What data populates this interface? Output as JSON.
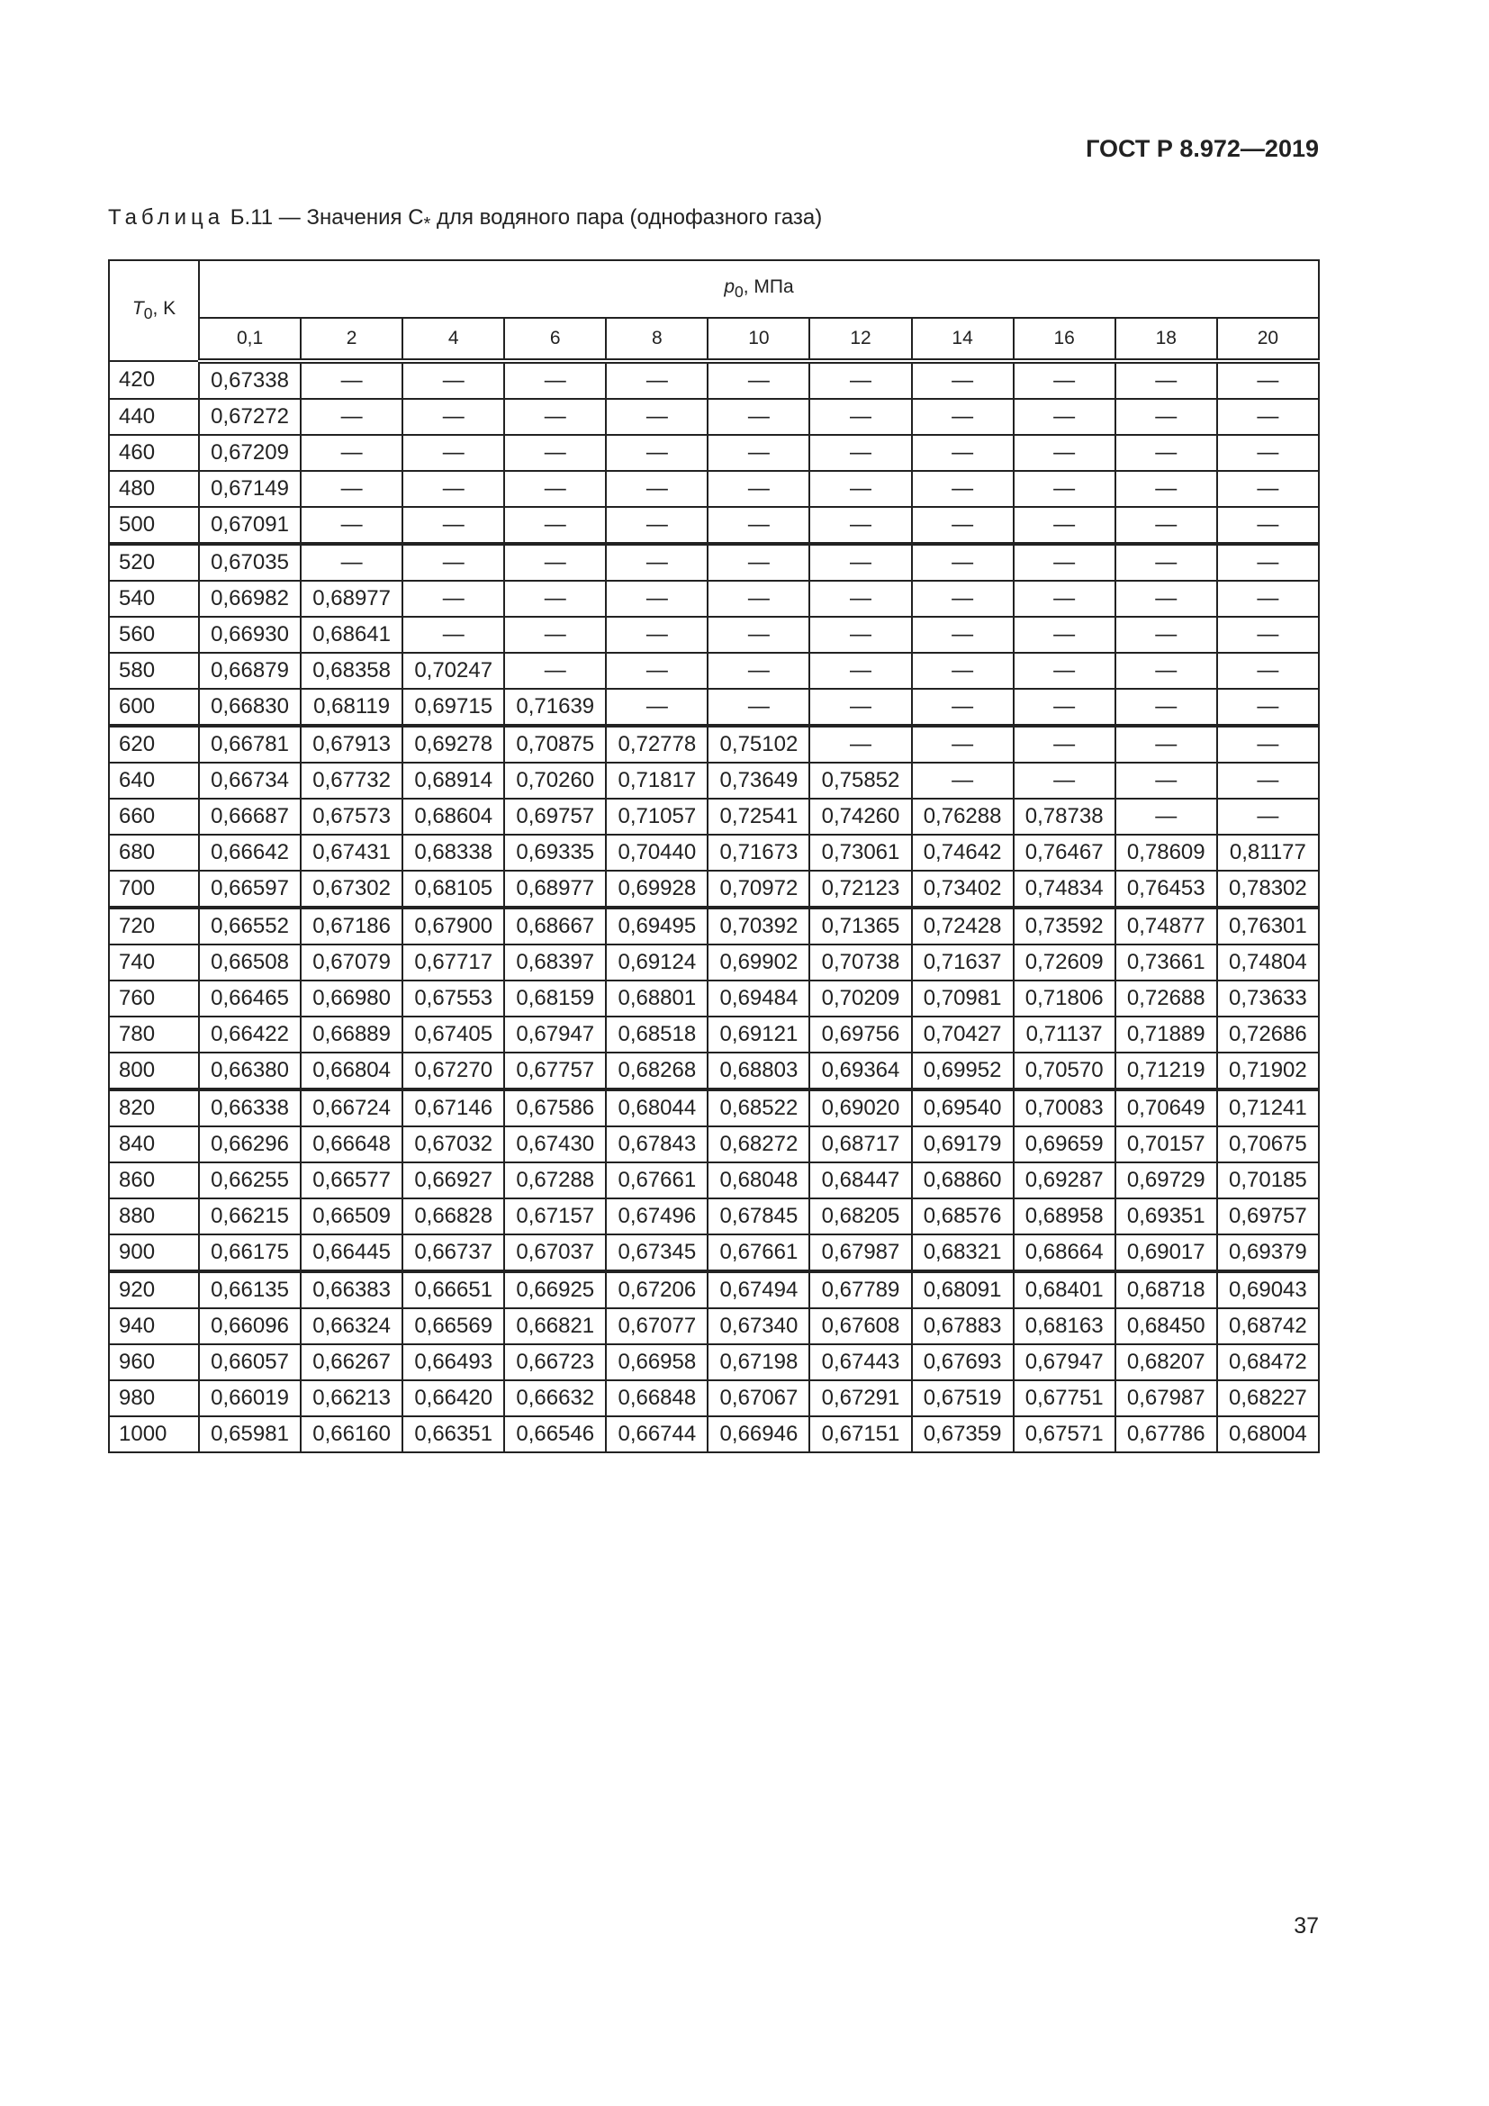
{
  "header": {
    "doc_code": "ГОСТ Р 8.972—2019"
  },
  "caption": {
    "prefix": "Таблица",
    "text": " Б.11 — Значения C",
    "sub": "*",
    "rest": " для водяного пара (однофазного газа)"
  },
  "table": {
    "row_header": {
      "sym": "T",
      "sub": "0",
      "unit": ", K"
    },
    "col_group": {
      "sym": "p",
      "sub": "0",
      "unit": ", МПа"
    },
    "pressures": [
      "0,1",
      "2",
      "4",
      "6",
      "8",
      "10",
      "12",
      "14",
      "16",
      "18",
      "20"
    ],
    "rows": [
      [
        "420",
        "0,67338",
        "—",
        "—",
        "—",
        "—",
        "—",
        "—",
        "—",
        "—",
        "—",
        "—"
      ],
      [
        "440",
        "0,67272",
        "—",
        "—",
        "—",
        "—",
        "—",
        "—",
        "—",
        "—",
        "—",
        "—"
      ],
      [
        "460",
        "0,67209",
        "—",
        "—",
        "—",
        "—",
        "—",
        "—",
        "—",
        "—",
        "—",
        "—"
      ],
      [
        "480",
        "0,67149",
        "—",
        "—",
        "—",
        "—",
        "—",
        "—",
        "—",
        "—",
        "—",
        "—"
      ],
      [
        "500",
        "0,67091",
        "—",
        "—",
        "—",
        "—",
        "—",
        "—",
        "—",
        "—",
        "—",
        "—"
      ],
      [
        "520",
        "0,67035",
        "—",
        "—",
        "—",
        "—",
        "—",
        "—",
        "—",
        "—",
        "—",
        "—"
      ],
      [
        "540",
        "0,66982",
        "0,68977",
        "—",
        "—",
        "—",
        "—",
        "—",
        "—",
        "—",
        "—",
        "—"
      ],
      [
        "560",
        "0,66930",
        "0,68641",
        "—",
        "—",
        "—",
        "—",
        "—",
        "—",
        "—",
        "—",
        "—"
      ],
      [
        "580",
        "0,66879",
        "0,68358",
        "0,70247",
        "—",
        "—",
        "—",
        "—",
        "—",
        "—",
        "—",
        "—"
      ],
      [
        "600",
        "0,66830",
        "0,68119",
        "0,69715",
        "0,71639",
        "—",
        "—",
        "—",
        "—",
        "—",
        "—",
        "—"
      ],
      [
        "620",
        "0,66781",
        "0,67913",
        "0,69278",
        "0,70875",
        "0,72778",
        "0,75102",
        "—",
        "—",
        "—",
        "—",
        "—"
      ],
      [
        "640",
        "0,66734",
        "0,67732",
        "0,68914",
        "0,70260",
        "0,71817",
        "0,73649",
        "0,75852",
        "—",
        "—",
        "—",
        "—"
      ],
      [
        "660",
        "0,66687",
        "0,67573",
        "0,68604",
        "0,69757",
        "0,71057",
        "0,72541",
        "0,74260",
        "0,76288",
        "0,78738",
        "—",
        "—"
      ],
      [
        "680",
        "0,66642",
        "0,67431",
        "0,68338",
        "0,69335",
        "0,70440",
        "0,71673",
        "0,73061",
        "0,74642",
        "0,76467",
        "0,78609",
        "0,81177"
      ],
      [
        "700",
        "0,66597",
        "0,67302",
        "0,68105",
        "0,68977",
        "0,69928",
        "0,70972",
        "0,72123",
        "0,73402",
        "0,74834",
        "0,76453",
        "0,78302"
      ],
      [
        "720",
        "0,66552",
        "0,67186",
        "0,67900",
        "0,68667",
        "0,69495",
        "0,70392",
        "0,71365",
        "0,72428",
        "0,73592",
        "0,74877",
        "0,76301"
      ],
      [
        "740",
        "0,66508",
        "0,67079",
        "0,67717",
        "0,68397",
        "0,69124",
        "0,69902",
        "0,70738",
        "0,71637",
        "0,72609",
        "0,73661",
        "0,74804"
      ],
      [
        "760",
        "0,66465",
        "0,66980",
        "0,67553",
        "0,68159",
        "0,68801",
        "0,69484",
        "0,70209",
        "0,70981",
        "0,71806",
        "0,72688",
        "0,73633"
      ],
      [
        "780",
        "0,66422",
        "0,66889",
        "0,67405",
        "0,67947",
        "0,68518",
        "0,69121",
        "0,69756",
        "0,70427",
        "0,71137",
        "0,71889",
        "0,72686"
      ],
      [
        "800",
        "0,66380",
        "0,66804",
        "0,67270",
        "0,67757",
        "0,68268",
        "0,68803",
        "0,69364",
        "0,69952",
        "0,70570",
        "0,71219",
        "0,71902"
      ],
      [
        "820",
        "0,66338",
        "0,66724",
        "0,67146",
        "0,67586",
        "0,68044",
        "0,68522",
        "0,69020",
        "0,69540",
        "0,70083",
        "0,70649",
        "0,71241"
      ],
      [
        "840",
        "0,66296",
        "0,66648",
        "0,67032",
        "0,67430",
        "0,67843",
        "0,68272",
        "0,68717",
        "0,69179",
        "0,69659",
        "0,70157",
        "0,70675"
      ],
      [
        "860",
        "0,66255",
        "0,66577",
        "0,66927",
        "0,67288",
        "0,67661",
        "0,68048",
        "0,68447",
        "0,68860",
        "0,69287",
        "0,69729",
        "0,70185"
      ],
      [
        "880",
        "0,66215",
        "0,66509",
        "0,66828",
        "0,67157",
        "0,67496",
        "0,67845",
        "0,68205",
        "0,68576",
        "0,68958",
        "0,69351",
        "0,69757"
      ],
      [
        "900",
        "0,66175",
        "0,66445",
        "0,66737",
        "0,67037",
        "0,67345",
        "0,67661",
        "0,67987",
        "0,68321",
        "0,68664",
        "0,69017",
        "0,69379"
      ],
      [
        "920",
        "0,66135",
        "0,66383",
        "0,66651",
        "0,66925",
        "0,67206",
        "0,67494",
        "0,67789",
        "0,68091",
        "0,68401",
        "0,68718",
        "0,69043"
      ],
      [
        "940",
        "0,66096",
        "0,66324",
        "0,66569",
        "0,66821",
        "0,67077",
        "0,67340",
        "0,67608",
        "0,67883",
        "0,68163",
        "0,68450",
        "0,68742"
      ],
      [
        "960",
        "0,66057",
        "0,66267",
        "0,66493",
        "0,66723",
        "0,66958",
        "0,67198",
        "0,67443",
        "0,67693",
        "0,67947",
        "0,68207",
        "0,68472"
      ],
      [
        "980",
        "0,66019",
        "0,66213",
        "0,66420",
        "0,66632",
        "0,66848",
        "0,67067",
        "0,67291",
        "0,67519",
        "0,67751",
        "0,67987",
        "0,68227"
      ],
      [
        "1000",
        "0,65981",
        "0,66160",
        "0,66351",
        "0,66546",
        "0,66744",
        "0,66946",
        "0,67151",
        "0,67359",
        "0,67571",
        "0,67786",
        "0,68004"
      ]
    ]
  },
  "footer": {
    "page_number": "37"
  }
}
